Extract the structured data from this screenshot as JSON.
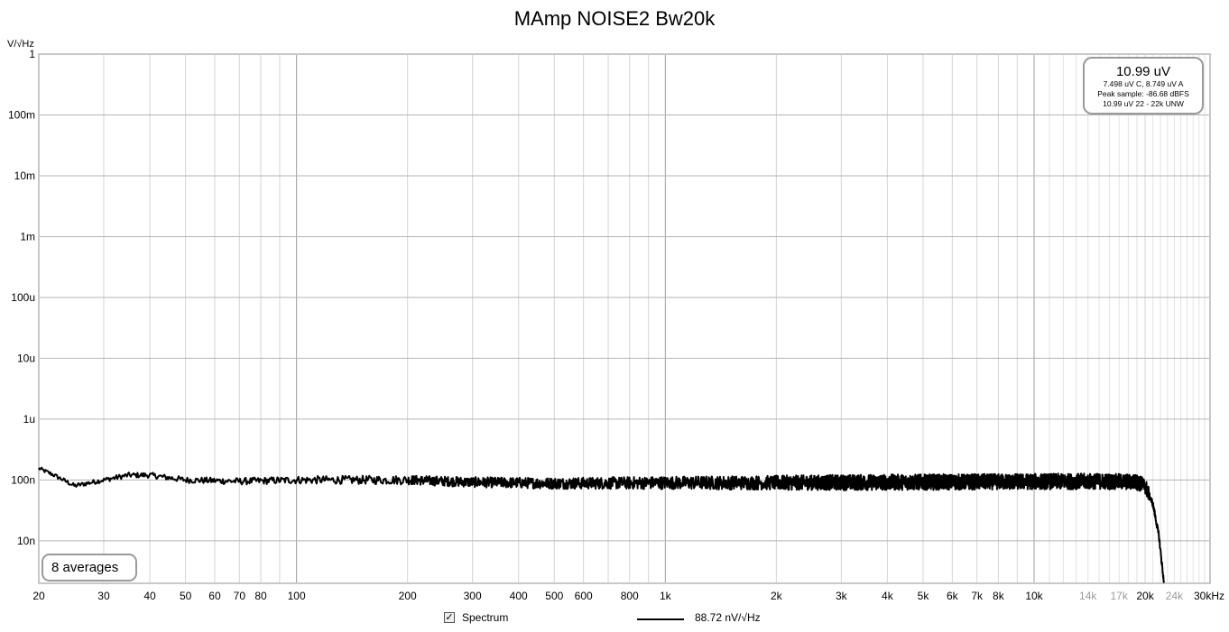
{
  "chart_data": {
    "type": "line",
    "title": "MAmp NOISE2 Bw20k",
    "ylabel": "V/√Hz",
    "xscale": "log",
    "yscale": "log",
    "xlim": [
      20,
      30000
    ],
    "ylim": [
      2e-09,
      1
    ],
    "grid": true,
    "x_ticks": [
      {
        "v": 20,
        "label": "20",
        "gray": false
      },
      {
        "v": 30,
        "label": "30",
        "gray": false
      },
      {
        "v": 40,
        "label": "40",
        "gray": false
      },
      {
        "v": 50,
        "label": "50",
        "gray": false
      },
      {
        "v": 60,
        "label": "60",
        "gray": false
      },
      {
        "v": 70,
        "label": "70",
        "gray": false
      },
      {
        "v": 80,
        "label": "80",
        "gray": false
      },
      {
        "v": 100,
        "label": "100",
        "gray": false
      },
      {
        "v": 200,
        "label": "200",
        "gray": false
      },
      {
        "v": 300,
        "label": "300",
        "gray": false
      },
      {
        "v": 400,
        "label": "400",
        "gray": false
      },
      {
        "v": 500,
        "label": "500",
        "gray": false
      },
      {
        "v": 600,
        "label": "600",
        "gray": false
      },
      {
        "v": 800,
        "label": "800",
        "gray": false
      },
      {
        "v": 1000,
        "label": "1k",
        "gray": false
      },
      {
        "v": 2000,
        "label": "2k",
        "gray": false
      },
      {
        "v": 3000,
        "label": "3k",
        "gray": false
      },
      {
        "v": 4000,
        "label": "4k",
        "gray": false
      },
      {
        "v": 5000,
        "label": "5k",
        "gray": false
      },
      {
        "v": 6000,
        "label": "6k",
        "gray": false
      },
      {
        "v": 7000,
        "label": "7k",
        "gray": false
      },
      {
        "v": 8000,
        "label": "8k",
        "gray": false
      },
      {
        "v": 10000,
        "label": "10k",
        "gray": false
      },
      {
        "v": 14000,
        "label": "14k",
        "gray": true
      },
      {
        "v": 17000,
        "label": "17k",
        "gray": true
      },
      {
        "v": 20000,
        "label": "20k",
        "gray": false
      },
      {
        "v": 24000,
        "label": "24k",
        "gray": true
      },
      {
        "v": 30000,
        "label": "30kHz",
        "gray": false
      }
    ],
    "y_ticks": [
      {
        "v": 1,
        "label": "1"
      },
      {
        "v": 0.1,
        "label": "100m"
      },
      {
        "v": 0.01,
        "label": "10m"
      },
      {
        "v": 0.001,
        "label": "1m"
      },
      {
        "v": 0.0001,
        "label": "100u"
      },
      {
        "v": 1e-05,
        "label": "10u"
      },
      {
        "v": 1e-06,
        "label": "1u"
      },
      {
        "v": 1e-07,
        "label": "100n"
      },
      {
        "v": 1e-08,
        "label": "10n"
      }
    ],
    "series": [
      {
        "name": "Spectrum",
        "color": "#000000",
        "noise_floor_v_per_rthz": 9e-08,
        "envelope": [
          [
            20,
            1.55e-07
          ],
          [
            22,
            1.2e-07
          ],
          [
            25,
            8e-08
          ],
          [
            30,
            1e-07
          ],
          [
            35,
            1.2e-07
          ],
          [
            40,
            1.2e-07
          ],
          [
            50,
            1e-07
          ],
          [
            70,
            9.5e-08
          ],
          [
            100,
            1e-07
          ],
          [
            150,
            1e-07
          ],
          [
            200,
            1e-07
          ],
          [
            300,
            9.2e-08
          ],
          [
            500,
            8.8e-08
          ],
          [
            1000,
            9e-08
          ],
          [
            2000,
            9e-08
          ],
          [
            5000,
            9.2e-08
          ],
          [
            10000,
            9.4e-08
          ],
          [
            15000,
            9.5e-08
          ],
          [
            19000,
            9.2e-08
          ],
          [
            20000,
            8e-08
          ],
          [
            21000,
            4e-08
          ],
          [
            21800,
            1.2e-08
          ],
          [
            22500,
            2e-09
          ]
        ]
      }
    ],
    "readout": {
      "main": "10.99 uV",
      "line1": "7.498 uV C, 8.749 uV A",
      "line2": "Peak sample: -86.68 dBFS",
      "line3": "10.99 uV 22 - 22k UNW"
    },
    "averages_label": "8 averages",
    "legend": {
      "checkbox_label": "Spectrum",
      "checked": true,
      "value_label": "88.72 nV/√Hz"
    }
  }
}
